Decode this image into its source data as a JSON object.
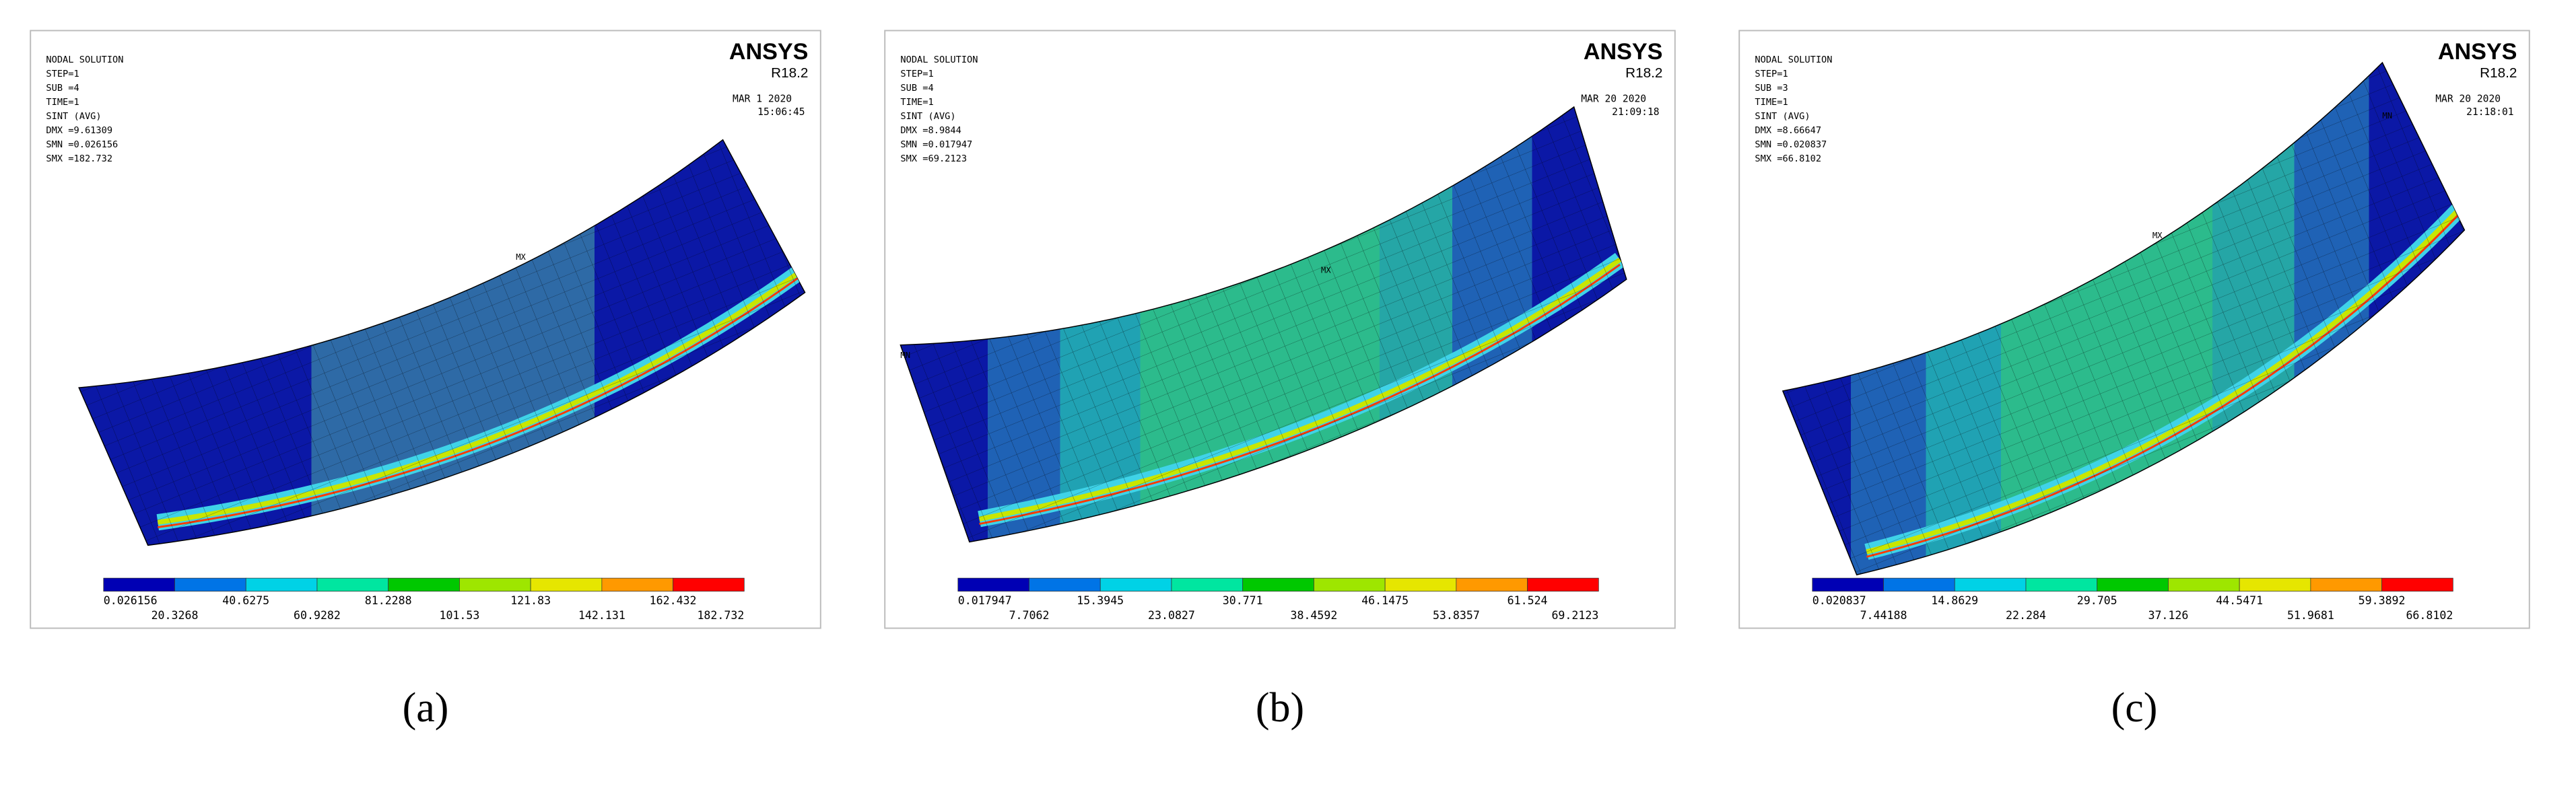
{
  "panels": [
    {
      "caption": "(a)",
      "header": [
        "NODAL SOLUTION",
        "STEP=1",
        "SUB =4",
        "TIME=1",
        "SINT    (AVG)",
        "DMX =9.61309",
        "SMN =0.026156",
        "SMX =182.732"
      ],
      "brand": "ANSYS",
      "version": "R18.2",
      "date": "MAR  1 2020",
      "time": "15:06:45",
      "markers": [
        "MX"
      ],
      "legend": [
        "0.026156",
        "20.3268",
        "40.6275",
        "60.9282",
        "81.2288",
        "101.53",
        "121.83",
        "142.131",
        "162.432",
        "182.732"
      ]
    },
    {
      "caption": "(b)",
      "header": [
        "NODAL SOLUTION",
        "STEP=1",
        "SUB =4",
        "TIME=1",
        "SINT    (AVG)",
        "DMX =8.9844",
        "SMN =0.017947",
        "SMX =69.2123"
      ],
      "brand": "ANSYS",
      "version": "R18.2",
      "date": "MAR 20 2020",
      "time": "21:09:18",
      "markers": [
        "MN",
        "MX"
      ],
      "legend": [
        "0.017947",
        "7.7062",
        "15.3945",
        "23.0827",
        "30.771",
        "38.4592",
        "46.1475",
        "53.8357",
        "61.524",
        "69.2123"
      ]
    },
    {
      "caption": "(c)",
      "header": [
        "NODAL SOLUTION",
        "STEP=1",
        "SUB =3",
        "TIME=1",
        "SINT    (AVG)",
        "DMX =8.66647",
        "SMN =0.020837",
        "SMX =66.8102"
      ],
      "brand": "ANSYS",
      "version": "R18.2",
      "date": "MAR 20 2020",
      "time": "21:18:01",
      "markers": [
        "MX",
        "MN"
      ],
      "legend": [
        "0.020837",
        "7.44188",
        "14.8629",
        "22.284",
        "29.705",
        "37.126",
        "44.5471",
        "51.9681",
        "59.3892",
        "66.8102"
      ]
    }
  ]
}
